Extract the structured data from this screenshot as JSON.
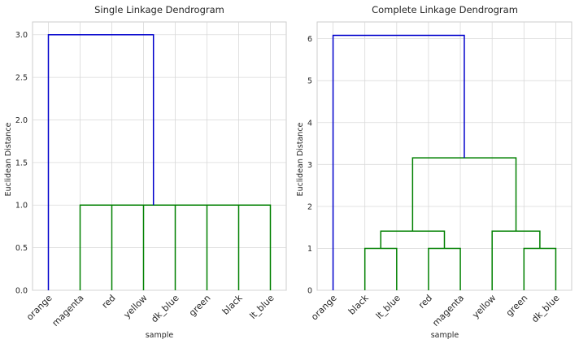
{
  "chart_data": [
    {
      "type": "dendrogram",
      "title": "Single Linkage Dendrogram",
      "xlabel": "sample",
      "ylabel": "Euclidean Distance",
      "ylim": [
        0,
        3.15
      ],
      "yticks": [
        "0.0",
        "0.5",
        "1.0",
        "1.5",
        "2.0",
        "2.5",
        "3.0"
      ],
      "ytick_values": [
        0,
        0.5,
        1,
        1.5,
        2,
        2.5,
        3
      ],
      "leaves": [
        "orange",
        "magenta",
        "red",
        "yellow",
        "dk_blue",
        "green",
        "black",
        "lt_blue"
      ],
      "grid": true,
      "colors": {
        "blue": "#0000cc",
        "green": "#008000"
      },
      "links": [
        {
          "left": [
            1,
            0
          ],
          "right": [
            2,
            0
          ],
          "height": 1.0,
          "color": "green"
        },
        {
          "left": [
            3,
            0
          ],
          "right": [
            4,
            0
          ],
          "height": 1.0,
          "color": "green"
        },
        {
          "left": [
            5,
            0
          ],
          "right": [
            6,
            0
          ],
          "height": 1.0,
          "color": "green"
        },
        {
          "left": [
            6.5,
            1.0
          ],
          "right": [
            7,
            0
          ],
          "height": 1.0,
          "color": "green"
        },
        {
          "left": [
            3.5,
            1.0
          ],
          "right": [
            6.75,
            1.0
          ],
          "height": 1.0,
          "color": "green"
        },
        {
          "left": [
            1.5,
            1.0
          ],
          "right": [
            5.125,
            1.0
          ],
          "height": 1.0,
          "color": "green"
        },
        {
          "left": [
            0,
            0
          ],
          "right": [
            3.3125,
            1.0
          ],
          "height": 3.0,
          "color": "blue"
        }
      ]
    },
    {
      "type": "dendrogram",
      "title": "Complete Linkage Dendrogram",
      "xlabel": "sample",
      "ylabel": "Euclidean Distance",
      "ylim": [
        0,
        6.4
      ],
      "yticks": [
        "0",
        "1",
        "2",
        "3",
        "4",
        "5",
        "6"
      ],
      "ytick_values": [
        0,
        1,
        2,
        3,
        4,
        5,
        6
      ],
      "leaves": [
        "orange",
        "black",
        "lt_blue",
        "red",
        "magenta",
        "yellow",
        "green",
        "dk_blue"
      ],
      "grid": true,
      "colors": {
        "blue": "#0000cc",
        "green": "#008000"
      },
      "links": [
        {
          "left": [
            1,
            0
          ],
          "right": [
            2,
            0
          ],
          "height": 1.0,
          "color": "green"
        },
        {
          "left": [
            3,
            0
          ],
          "right": [
            4,
            0
          ],
          "height": 1.0,
          "color": "green"
        },
        {
          "left": [
            1.5,
            1.0
          ],
          "right": [
            3.5,
            1.0
          ],
          "height": 1.41,
          "color": "green"
        },
        {
          "left": [
            6,
            0
          ],
          "right": [
            7,
            0
          ],
          "height": 1.0,
          "color": "green"
        },
        {
          "left": [
            5,
            0
          ],
          "right": [
            6.5,
            1.0
          ],
          "height": 1.41,
          "color": "green"
        },
        {
          "left": [
            2.5,
            1.41
          ],
          "right": [
            5.75,
            1.41
          ],
          "height": 3.16,
          "color": "green"
        },
        {
          "left": [
            0,
            0
          ],
          "right": [
            4.125,
            3.16
          ],
          "height": 6.08,
          "color": "blue"
        }
      ]
    }
  ]
}
